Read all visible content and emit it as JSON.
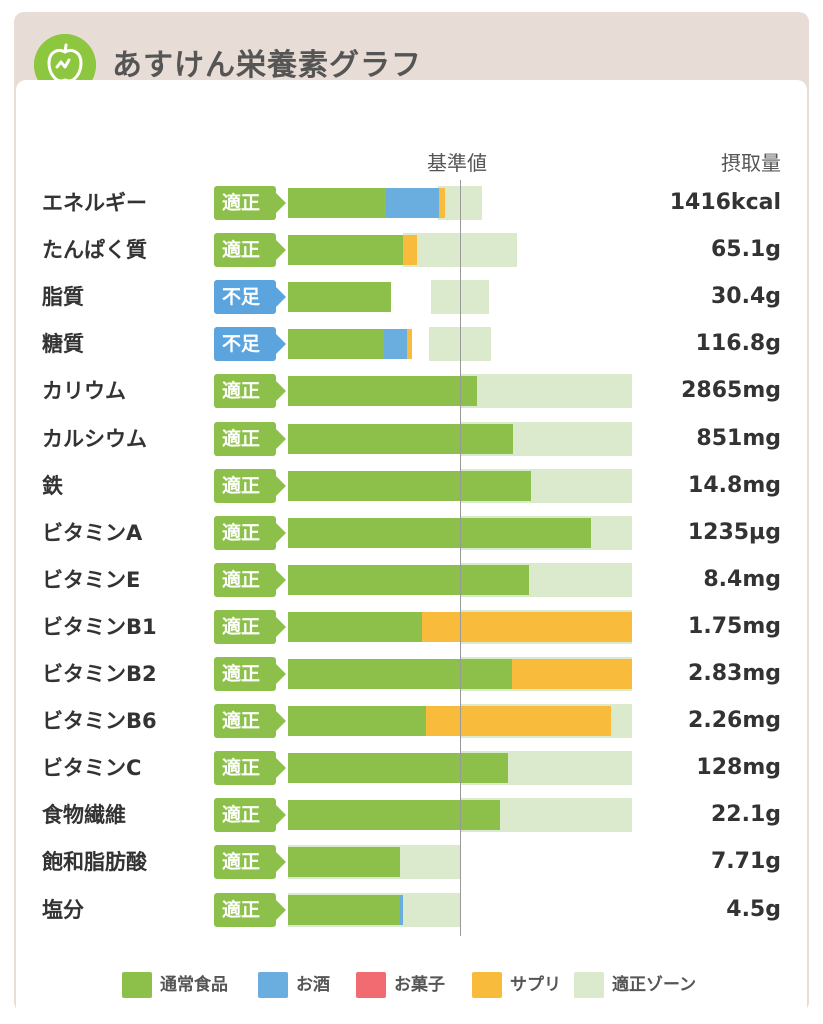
{
  "header": {
    "title": "あすけん栄養素グラフ"
  },
  "columns": {
    "reference": "基準値",
    "intake": "摂取量"
  },
  "colors": {
    "food": "#8dc04a",
    "alcohol": "#6aaee0",
    "snack": "#f26b70",
    "supplement": "#f9bb3c",
    "zone": "#dbe9cc",
    "badge_ok": "#8dc04a",
    "badge_low": "#5ba4de"
  },
  "chart_data": {
    "type": "bar",
    "orientation": "horizontal",
    "stacked": true,
    "reference_line": 100,
    "xlim": [
      0,
      200
    ],
    "series_names": [
      "通常食品",
      "お酒",
      "お菓子",
      "サプリ"
    ],
    "rows": [
      {
        "label": "エネルギー",
        "status": "適正",
        "status_type": "ok",
        "food": 57,
        "alcohol": 31,
        "snack": 0,
        "supplement": 3,
        "zone": [
          87,
          113
        ],
        "value": "1416kcal"
      },
      {
        "label": "たんぱく質",
        "status": "適正",
        "status_type": "ok",
        "food": 67,
        "alcohol": 0,
        "snack": 0,
        "supplement": 8,
        "zone": [
          67,
          133
        ],
        "value": "65.1g"
      },
      {
        "label": "脂質",
        "status": "不足",
        "status_type": "low",
        "food": 60,
        "alcohol": 0,
        "snack": 0,
        "supplement": 0,
        "zone": [
          83,
          117
        ],
        "value": "30.4g"
      },
      {
        "label": "糖質",
        "status": "不足",
        "status_type": "low",
        "food": 56,
        "alcohol": 13,
        "snack": 0,
        "supplement": 3,
        "zone": [
          82,
          118
        ],
        "value": "116.8g"
      },
      {
        "label": "カリウム",
        "status": "適正",
        "status_type": "ok",
        "food": 110,
        "alcohol": 0,
        "snack": 0,
        "supplement": 0,
        "zone": [
          100,
          200
        ],
        "value": "2865mg"
      },
      {
        "label": "カルシウム",
        "status": "適正",
        "status_type": "ok",
        "food": 131,
        "alcohol": 0,
        "snack": 0,
        "supplement": 0,
        "zone": [
          100,
          200
        ],
        "value": "851mg"
      },
      {
        "label": "鉄",
        "status": "適正",
        "status_type": "ok",
        "food": 141,
        "alcohol": 0,
        "snack": 0,
        "supplement": 0,
        "zone": [
          100,
          200
        ],
        "value": "14.8mg"
      },
      {
        "label": "ビタミンA",
        "status": "適正",
        "status_type": "ok",
        "food": 176,
        "alcohol": 0,
        "snack": 0,
        "supplement": 0,
        "zone": [
          100,
          200
        ],
        "value": "1235µg"
      },
      {
        "label": "ビタミンE",
        "status": "適正",
        "status_type": "ok",
        "food": 140,
        "alcohol": 0,
        "snack": 0,
        "supplement": 0,
        "zone": [
          100,
          200
        ],
        "value": "8.4mg"
      },
      {
        "label": "ビタミンB1",
        "status": "適正",
        "status_type": "ok",
        "food": 78,
        "alcohol": 0,
        "snack": 0,
        "supplement": 122,
        "zone": [
          100,
          200
        ],
        "value": "1.75mg"
      },
      {
        "label": "ビタミンB2",
        "status": "適正",
        "status_type": "ok",
        "food": 130,
        "alcohol": 0,
        "snack": 0,
        "supplement": 70,
        "zone": [
          100,
          200
        ],
        "value": "2.83mg"
      },
      {
        "label": "ビタミンB6",
        "status": "適正",
        "status_type": "ok",
        "food": 80,
        "alcohol": 0,
        "snack": 0,
        "supplement": 108,
        "zone": [
          100,
          200
        ],
        "value": "2.26mg"
      },
      {
        "label": "ビタミンC",
        "status": "適正",
        "status_type": "ok",
        "food": 128,
        "alcohol": 0,
        "snack": 0,
        "supplement": 0,
        "zone": [
          100,
          200
        ],
        "value": "128mg"
      },
      {
        "label": "食物繊維",
        "status": "適正",
        "status_type": "ok",
        "food": 123,
        "alcohol": 0,
        "snack": 0,
        "supplement": 0,
        "zone": [
          100,
          200
        ],
        "value": "22.1g"
      },
      {
        "label": "飽和脂肪酸",
        "status": "適正",
        "status_type": "ok",
        "food": 65,
        "alcohol": 0,
        "snack": 0,
        "supplement": 0,
        "zone": [
          0,
          100
        ],
        "value": "7.71g"
      },
      {
        "label": "塩分",
        "status": "適正",
        "status_type": "ok",
        "food": 65,
        "alcohol": 2,
        "snack": 0,
        "supplement": 0,
        "zone": [
          0,
          100
        ],
        "value": "4.5g"
      }
    ]
  },
  "legend": [
    {
      "label": "通常食品",
      "color": "#8dc04a"
    },
    {
      "label": "お酒",
      "color": "#6aaee0"
    },
    {
      "label": "お菓子",
      "color": "#f26b70"
    },
    {
      "label": "サプリ",
      "color": "#f9bb3c"
    },
    {
      "label": "適正ゾーン",
      "color": "#dbe9cc"
    }
  ]
}
